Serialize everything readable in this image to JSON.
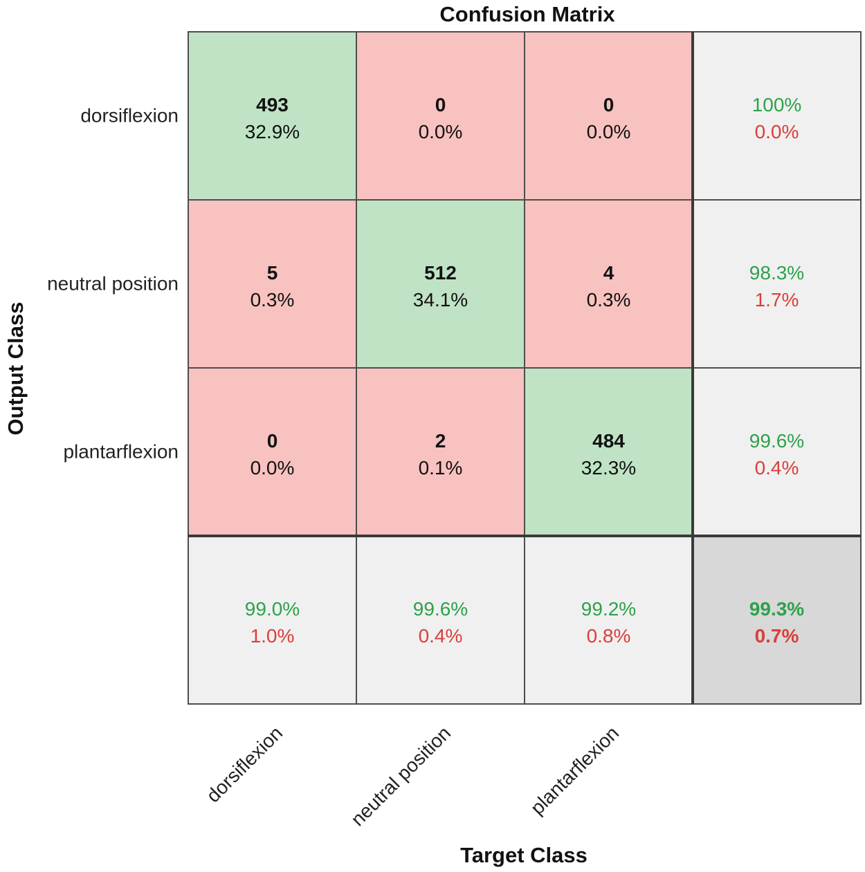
{
  "chart_data": {
    "type": "heatmap",
    "title": "Confusion Matrix",
    "xlabel": "Target Class",
    "ylabel": "Output Class",
    "classes": [
      "dorsiflexion",
      "neutral position",
      "plantarflexion"
    ],
    "matrix": {
      "counts": [
        [
          493,
          0,
          0
        ],
        [
          5,
          512,
          4
        ],
        [
          0,
          2,
          484
        ]
      ],
      "percents": [
        [
          "32.9%",
          "0.0%",
          "0.0%"
        ],
        [
          "0.3%",
          "34.1%",
          "0.3%"
        ],
        [
          "0.0%",
          "0.1%",
          "32.3%"
        ]
      ]
    },
    "row_summary": [
      {
        "correct": "100%",
        "error": "0.0%"
      },
      {
        "correct": "98.3%",
        "error": "1.7%"
      },
      {
        "correct": "99.6%",
        "error": "0.4%"
      }
    ],
    "column_summary": [
      {
        "correct": "99.0%",
        "error": "1.0%"
      },
      {
        "correct": "99.6%",
        "error": "0.4%"
      },
      {
        "correct": "99.2%",
        "error": "0.8%"
      }
    ],
    "overall": {
      "correct": "99.3%",
      "error": "0.7%"
    },
    "colors": {
      "correct_cell": "#bfe3c4",
      "incorrect_cell": "#f8c2c0",
      "summary_cell": "#f0f0f0",
      "overall_cell": "#d8d8d8",
      "correct_text": "#2ca24a",
      "error_text": "#d93f3a",
      "grid_line": "#4d4d4d"
    }
  }
}
